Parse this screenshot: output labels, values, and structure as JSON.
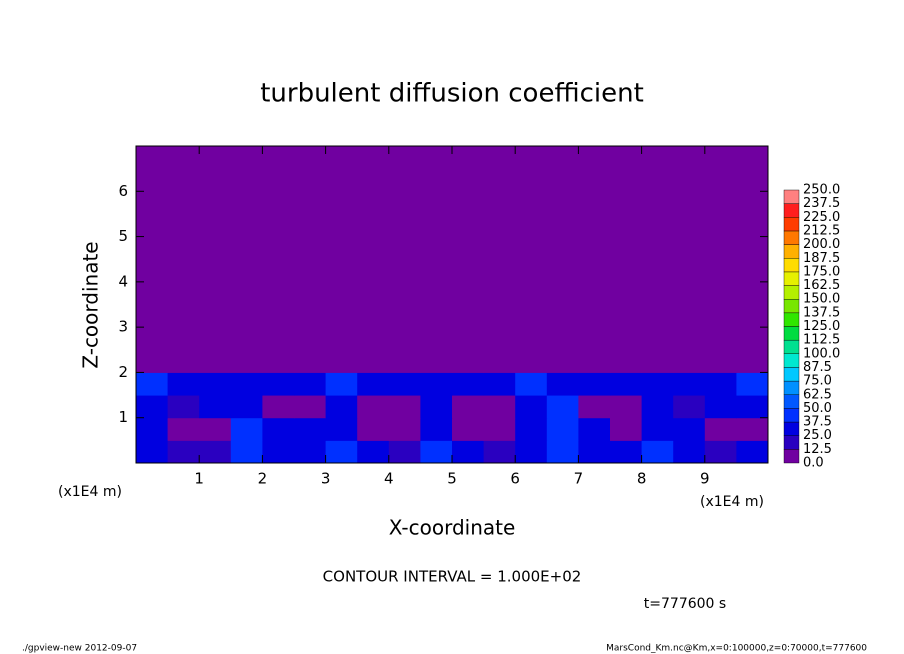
{
  "chart_data": {
    "type": "heatmap",
    "title": "turbulent diffusion coefficient",
    "x_label": "X-coordinate",
    "y_label": "Z-coordinate",
    "x_unit": "(x1E4 m)",
    "y_unit": "(x1E4 m)",
    "contour_note": "CONTOUR INTERVAL = 1.000E+02",
    "time_note": "t=777600 s",
    "footer_left": "./gpview-new  2012-09-07",
    "footer_right": "MarsCond_Km.nc@Km,x=0:100000,z=0:70000,t=777600",
    "xlim": [
      0,
      10
    ],
    "ylim": [
      0,
      7
    ],
    "xticks": [
      1,
      2,
      3,
      4,
      5,
      6,
      7,
      8,
      9
    ],
    "yticks": [
      1,
      2,
      3,
      4,
      5,
      6
    ],
    "xbins": [
      0,
      0.5,
      1,
      1.5,
      2,
      2.5,
      3,
      3.5,
      4,
      4.5,
      5,
      5.5,
      6,
      6.5,
      7,
      7.5,
      8,
      8.5,
      9,
      9.5,
      10
    ],
    "ybins": [
      0,
      0.5,
      1,
      1.5,
      2,
      7
    ],
    "z": [
      [
        25,
        20,
        20,
        45,
        25,
        25,
        45,
        25,
        20,
        45,
        25,
        20,
        25,
        45,
        25,
        25,
        45,
        25,
        20,
        25
      ],
      [
        25,
        10,
        10,
        40,
        25,
        25,
        35,
        10,
        10,
        35,
        10,
        10,
        25,
        45,
        25,
        10,
        35,
        25,
        10,
        10
      ],
      [
        30,
        20,
        25,
        35,
        10,
        10,
        35,
        10,
        10,
        30,
        10,
        10,
        30,
        40,
        10,
        10,
        30,
        20,
        25,
        25
      ],
      [
        40,
        25,
        25,
        30,
        25,
        25,
        40,
        25,
        25,
        25,
        25,
        25,
        40,
        35,
        25,
        25,
        30,
        25,
        25,
        40
      ],
      [
        0,
        0,
        0,
        0,
        0,
        0,
        0,
        0,
        0,
        0,
        0,
        0,
        0,
        0,
        0,
        0,
        0,
        0,
        0,
        0
      ]
    ],
    "levels": [
      {
        "value": 0,
        "label": "0.0"
      },
      12.5,
      {
        "value": 25,
        "label": "25.0"
      },
      37.5,
      {
        "value": 50,
        "label": "50.0"
      },
      62.5,
      {
        "value": 75,
        "label": "75.0"
      },
      87.5,
      {
        "value": 100,
        "label": "100.0"
      },
      112.5,
      {
        "value": 125,
        "label": "125.0"
      },
      137.5,
      {
        "value": 150,
        "label": "150.0"
      },
      162.5,
      {
        "value": 175,
        "label": "175.0"
      },
      187.5,
      {
        "value": 200,
        "label": "200.0"
      },
      212.5,
      {
        "value": 225,
        "label": "225.0"
      },
      237.5,
      {
        "value": 250,
        "label": "250.0"
      }
    ],
    "level_colors": [
      "#7000a0",
      "#2a00c0",
      "#0000e0",
      "#0030ff",
      "#0058ff",
      "#0090ff",
      "#00c8ff",
      "#00e8d0",
      "#00e090",
      "#00dc40",
      "#30e600",
      "#78e600",
      "#b4f000",
      "#e6f000",
      "#ffdc00",
      "#ffb000",
      "#ff7800",
      "#ff3c00",
      "#ff1e1e",
      "#ff8080"
    ]
  }
}
